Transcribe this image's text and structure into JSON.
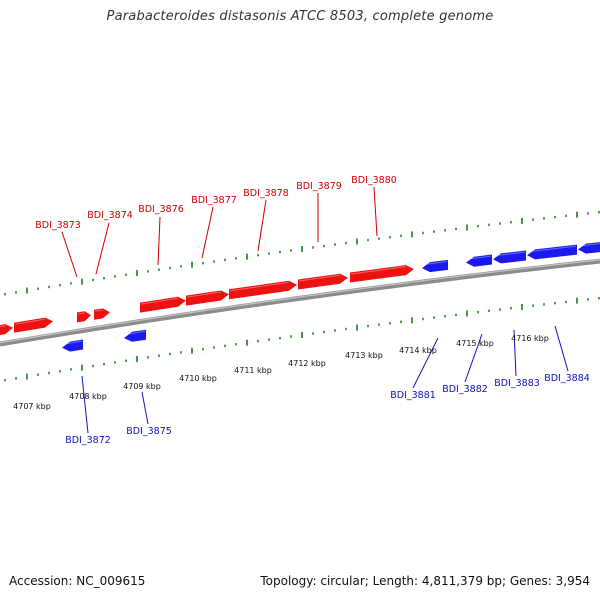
{
  "title": "Parabacteroides distasonis ATCC 8503, complete genome",
  "footer": {
    "accession": "Accession: NC_009615",
    "summary": "Topology: circular; Length: 4,811,379 bp; Genes: 3,954"
  },
  "colors": {
    "forward_gene": "#ee1111",
    "reverse_gene": "#1a1aee",
    "forward_label": "#cc0000",
    "reverse_label": "#1111bb",
    "backbone": "#8c8c8c",
    "tick": "#1a7a1a"
  },
  "scale_labels": [
    "4707 kbp",
    "4708 kbp",
    "4709 kbp",
    "4710 kbp",
    "4711 kbp",
    "4712 kbp",
    "4713 kbp",
    "4714 kbp",
    "4715 kbp",
    "4716 kbp"
  ],
  "forward_genes": [
    "BDI_3873",
    "BDI_3874",
    "BDI_3876",
    "BDI_3877",
    "BDI_3878",
    "BDI_3879",
    "BDI_3880"
  ],
  "reverse_genes": [
    "BDI_3872",
    "BDI_3875",
    "BDI_3881",
    "BDI_3882",
    "BDI_3883",
    "BDI_3884"
  ]
}
